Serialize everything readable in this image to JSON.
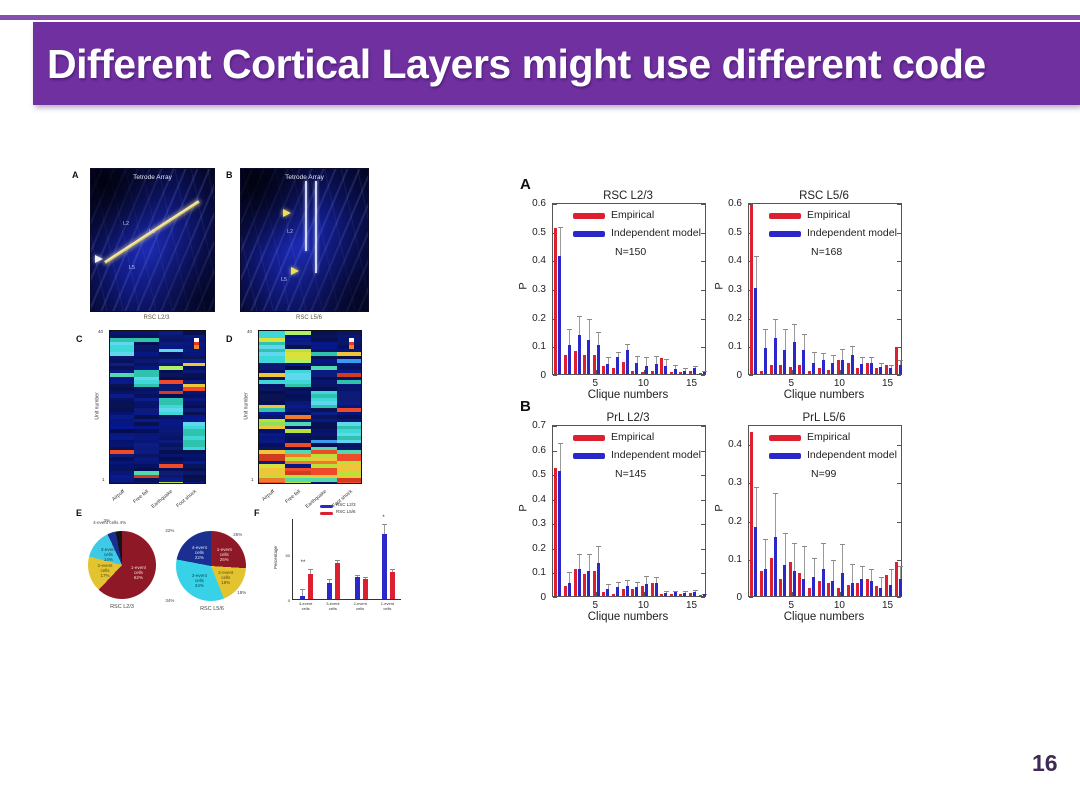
{
  "slide": {
    "title": "Different Cortical Layers might use different code",
    "page_number": "16",
    "colors": {
      "banner": "#7030a0",
      "page_number": "#3f2a56",
      "empirical_red": "#dd2030",
      "independent_blue": "#2a28c8"
    }
  },
  "left_figure": {
    "panel_letters": {
      "a": "A",
      "b": "B",
      "c": "C",
      "d": "D",
      "e": "E",
      "f": "F"
    },
    "tetrode_a": {
      "caption": "Tetrode Array",
      "layer_labels": [
        "L2",
        "L3",
        "L5"
      ]
    },
    "tetrode_b": {
      "caption": "Tetrode Array",
      "layer_labels": [
        "L2",
        "L5"
      ]
    }
  },
  "right_figure": {
    "panel_letters": {
      "a": "A",
      "b": "B"
    }
  },
  "chart_data": [
    {
      "id": "rsc_l23",
      "type": "bar",
      "panel": "A",
      "title": "RSC L2/3",
      "xlabel": "Clique numbers",
      "ylabel": "P",
      "n_label": "N=150",
      "legend": [
        "Empirical",
        "Independent model"
      ],
      "ylim": [
        0,
        0.6
      ],
      "yticks": [
        0,
        0.1,
        0.2,
        0.3,
        0.4,
        0.5,
        0.6
      ],
      "xticks": [
        5,
        10,
        15
      ],
      "x": [
        1,
        2,
        3,
        4,
        5,
        6,
        7,
        8,
        9,
        10,
        11,
        12,
        13,
        14,
        15,
        16
      ],
      "series": [
        {
          "name": "Empirical",
          "color": "#dd2030",
          "values": [
            0.51,
            0.065,
            0.08,
            0.065,
            0.065,
            0.028,
            0.02,
            0.042,
            0.012,
            0.008,
            0.012,
            0.055,
            0.006,
            0.006,
            0.012,
            0.004
          ]
        },
        {
          "name": "Independent model",
          "color": "#2a28c8",
          "values": [
            0.41,
            0.1,
            0.135,
            0.12,
            0.1,
            0.035,
            0.06,
            0.083,
            0.04,
            0.028,
            0.035,
            0.028,
            0.018,
            0.012,
            0.02,
            0.006
          ],
          "err": [
            0.11,
            0.065,
            0.075,
            0.08,
            0.055,
            0.03,
            0.025,
            0.03,
            0.03,
            0.04,
            0.035,
            0.03,
            0.02,
            0.015,
            0.015,
            0.01
          ]
        }
      ]
    },
    {
      "id": "rsc_l56",
      "type": "bar",
      "panel": "A",
      "title": "RSC L5/6",
      "xlabel": "Clique numbers",
      "ylabel": "P",
      "n_label": "N=168",
      "legend": [
        "Empirical",
        "Independent model"
      ],
      "ylim": [
        0,
        0.6
      ],
      "yticks": [
        0,
        0.1,
        0.2,
        0.3,
        0.4,
        0.5,
        0.6
      ],
      "xticks": [
        5,
        10,
        15
      ],
      "x": [
        1,
        2,
        3,
        4,
        5,
        6,
        7,
        8,
        9,
        10,
        11,
        12,
        13,
        14,
        15,
        16
      ],
      "series": [
        {
          "name": "Empirical",
          "color": "#dd2030",
          "values": [
            0.59,
            0.012,
            0.03,
            0.03,
            0.025,
            0.03,
            0.01,
            0.02,
            0.015,
            0.05,
            0.04,
            0.02,
            0.04,
            0.02,
            0.03,
            0.095
          ]
        },
        {
          "name": "Independent model",
          "color": "#2a28c8",
          "values": [
            0.3,
            0.09,
            0.125,
            0.085,
            0.11,
            0.085,
            0.04,
            0.05,
            0.04,
            0.05,
            0.065,
            0.035,
            0.04,
            0.025,
            0.02,
            0.03
          ],
          "err": [
            0.12,
            0.075,
            0.075,
            0.08,
            0.07,
            0.06,
            0.045,
            0.03,
            0.035,
            0.045,
            0.04,
            0.03,
            0.025,
            0.02,
            0.02,
            0.025
          ]
        }
      ]
    },
    {
      "id": "prl_l23",
      "type": "bar",
      "panel": "B",
      "title": "PrL L2/3",
      "xlabel": "Clique numbers",
      "ylabel": "P",
      "n_label": "N=145",
      "legend": [
        "Empirical",
        "Independent model"
      ],
      "ylim": [
        0,
        0.7
      ],
      "yticks": [
        0,
        0.1,
        0.2,
        0.3,
        0.4,
        0.5,
        0.6,
        0.7
      ],
      "xticks": [
        5,
        10,
        15
      ],
      "x": [
        1,
        2,
        3,
        4,
        5,
        6,
        7,
        8,
        9,
        10,
        11,
        12,
        13,
        14,
        15,
        16
      ],
      "series": [
        {
          "name": "Empirical",
          "color": "#dd2030",
          "values": [
            0.52,
            0.04,
            0.11,
            0.09,
            0.1,
            0.015,
            0.01,
            0.03,
            0.03,
            0.04,
            0.055,
            0.008,
            0.01,
            0.008,
            0.012,
            0.006
          ]
        },
        {
          "name": "Independent model",
          "color": "#2a28c8",
          "values": [
            0.51,
            0.055,
            0.11,
            0.1,
            0.135,
            0.03,
            0.035,
            0.04,
            0.035,
            0.05,
            0.055,
            0.012,
            0.015,
            0.012,
            0.018,
            0.008
          ],
          "err": [
            0.12,
            0.05,
            0.07,
            0.08,
            0.075,
            0.025,
            0.03,
            0.035,
            0.03,
            0.04,
            0.03,
            0.015,
            0.015,
            0.015,
            0.015,
            0.01
          ]
        }
      ]
    },
    {
      "id": "prl_l56",
      "type": "bar",
      "panel": "B",
      "title": "PrL L5/6",
      "xlabel": "Clique numbers",
      "ylabel": "P",
      "n_label": "N=99",
      "legend": [
        "Empirical",
        "Independent model"
      ],
      "ylim": [
        0,
        0.45
      ],
      "yticks": [
        0,
        0.1,
        0.2,
        0.3,
        0.4
      ],
      "xticks": [
        5,
        10,
        15
      ],
      "x": [
        1,
        2,
        3,
        4,
        5,
        6,
        7,
        8,
        9,
        10,
        11,
        12,
        13,
        14,
        15,
        16
      ],
      "series": [
        {
          "name": "Empirical",
          "color": "#dd2030",
          "values": [
            0.43,
            0.065,
            0.1,
            0.045,
            0.09,
            0.06,
            0.02,
            0.04,
            0.035,
            0.02,
            0.03,
            0.035,
            0.045,
            0.025,
            0.055,
            0.09
          ]
        },
        {
          "name": "Independent model",
          "color": "#2a28c8",
          "values": [
            0.18,
            0.07,
            0.155,
            0.08,
            0.065,
            0.045,
            0.05,
            0.07,
            0.04,
            0.06,
            0.035,
            0.045,
            0.04,
            0.02,
            0.03,
            0.045
          ],
          "err": [
            0.11,
            0.085,
            0.12,
            0.09,
            0.08,
            0.09,
            0.055,
            0.075,
            0.06,
            0.08,
            0.055,
            0.04,
            0.035,
            0.035,
            0.045,
            0.04
          ]
        }
      ]
    },
    {
      "id": "hm_rsc_l23",
      "type": "heatmap",
      "title": "RSC L2/3",
      "ylabel": "Unit number",
      "ytick_top": "40",
      "ytick_bottom": "1",
      "categories": [
        "Airpuff",
        "Free fall",
        "Earthquake",
        "Foot shock"
      ],
      "seed": 7,
      "density": 0.22
    },
    {
      "id": "hm_rsc_l56",
      "type": "heatmap",
      "title": "RSC L5/6",
      "ylabel": "Unit number",
      "ytick_top": "40",
      "ytick_bottom": "1",
      "categories": [
        "Airpuff",
        "Free fall",
        "Earthquake",
        "Foot shock"
      ],
      "seed": 13,
      "density": 0.5
    },
    {
      "id": "pie_rsc_l23",
      "type": "pie",
      "caption": "RSC L2/3",
      "slices": [
        {
          "label": "1-event cells",
          "pct": 62,
          "color": "#8e1825",
          "inside": true,
          "text_color": "#f2d8d8"
        },
        {
          "label": "2-event cells",
          "pct": 17,
          "color": "#e3c430",
          "inside": true,
          "text_color": "#5a4a10"
        },
        {
          "label": "3-event cells",
          "pct": 14,
          "color": "#3ec9e6",
          "inside": true,
          "text_color": "#0a4a5a"
        },
        {
          "label": "4-event cells",
          "pct": 4,
          "color": "#1a2f8f",
          "out": true,
          "callout": "4-event cells 4%"
        },
        {
          "label": "others",
          "pct": 3,
          "color": "#141414",
          "out": true,
          "callout": "3%"
        }
      ]
    },
    {
      "id": "pie_rsc_l56",
      "type": "pie",
      "caption": "RSC L5/6",
      "slices": [
        {
          "label": "1-event cells",
          "pct": 26,
          "color": "#8e1825",
          "inside": true,
          "text_color": "#f2d8d8",
          "out": true
        },
        {
          "label": "2-event cells",
          "pct": 18,
          "color": "#e3c430",
          "inside": true,
          "text_color": "#5a4a10",
          "out": true
        },
        {
          "label": "3-event cells",
          "pct": 34,
          "color": "#37d2e8",
          "inside": true,
          "text_color": "#0a4a5a",
          "out": true
        },
        {
          "label": "4-event cells",
          "pct": 22,
          "color": "#1a2f8f",
          "inside": true,
          "text_color": "#d8e0ff",
          "out": true
        }
      ]
    },
    {
      "id": "event_bars",
      "type": "bar",
      "panel": "F",
      "ylabel": "Percentage",
      "ylim": [
        0,
        90
      ],
      "yticks": [
        0,
        50
      ],
      "categories": [
        "4-event cells",
        "3-event cells",
        "2-event cells",
        "1-event cells"
      ],
      "sig": [
        "**",
        "",
        "",
        "*"
      ],
      "series": [
        {
          "name": "RSC L2/3",
          "color": "#2a28c8",
          "values": [
            3,
            18,
            24,
            72
          ],
          "err": [
            9,
            5,
            4,
            13
          ]
        },
        {
          "name": "RSC L5/6",
          "color": "#dd2030",
          "values": [
            28,
            40,
            22,
            30
          ],
          "err": [
            6,
            5,
            4,
            5
          ]
        }
      ]
    }
  ]
}
